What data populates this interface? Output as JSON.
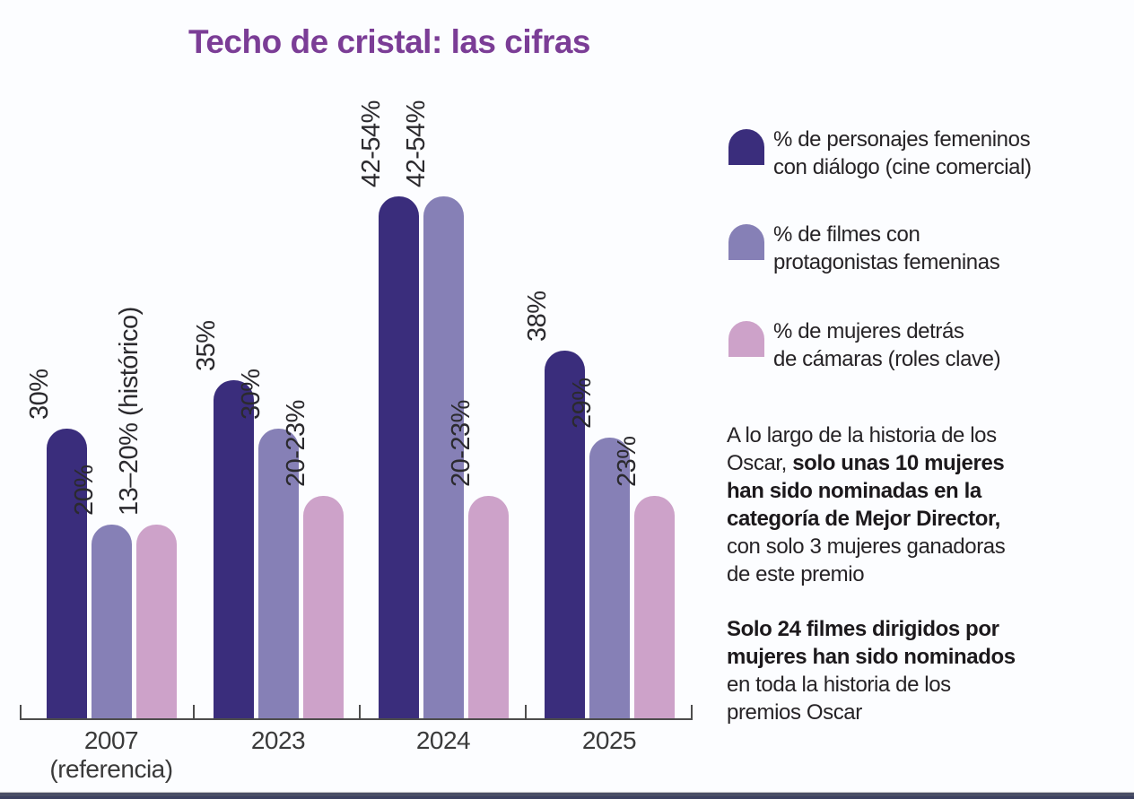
{
  "title": "Techo de cristal: las cifras",
  "chart_data": {
    "type": "bar",
    "title": "Techo de cristal: las cifras",
    "categories": [
      "2007 (referencia)",
      "2023",
      "2024",
      "2025"
    ],
    "category_lines": [
      [
        "2007",
        "(referencia)"
      ],
      [
        "2023"
      ],
      [
        "2024"
      ],
      [
        "2025"
      ]
    ],
    "ylim": [
      0,
      60
    ],
    "grid": false,
    "legend_position": "right",
    "series": [
      {
        "name": "% de personajes femeninos con diálogo (cine comercial)",
        "color": "#3a2d7c",
        "values": [
          30,
          35,
          54,
          38
        ],
        "value_labels": [
          "30%",
          "35%",
          "42-54%",
          "38%"
        ]
      },
      {
        "name": "% de filmes con protagonistas femeninas",
        "color": "#8680b6",
        "values": [
          20,
          30,
          54,
          29
        ],
        "value_labels": [
          "20%",
          "30%",
          "42-54%",
          "29%"
        ]
      },
      {
        "name": "% de mujeres detrás de cámaras (roles clave)",
        "color": "#cda2c9",
        "values": [
          20,
          23,
          23,
          23
        ],
        "value_labels": [
          "13–20% (histórico)",
          "20-23%",
          "20-23%",
          "23%"
        ]
      }
    ]
  },
  "legend": {
    "items": [
      {
        "color": "#3a2d7c",
        "lines": [
          "% de personajes femeninos",
          "con diálogo (cine comercial)"
        ]
      },
      {
        "color": "#8680b6",
        "lines": [
          "% de filmes con",
          "protagonistas femeninas"
        ]
      },
      {
        "color": "#cda2c9",
        "lines": [
          "% de mujeres detrás",
          "de cámaras (roles clave)"
        ]
      }
    ]
  },
  "notes": {
    "paragraphs": [
      {
        "lines": [
          [
            {
              "text": "A lo largo de la historia de los",
              "bold": false
            }
          ],
          [
            {
              "text": "Oscar, ",
              "bold": false
            },
            {
              "text": "solo unas 10 mujeres",
              "bold": true
            }
          ],
          [
            {
              "text": "han sido nominadas en la",
              "bold": true
            }
          ],
          [
            {
              "text": "categoría de Mejor Director,",
              "bold": true
            }
          ],
          [
            {
              "text": "con solo 3 mujeres ganadoras",
              "bold": false
            }
          ],
          [
            {
              "text": "de este premio",
              "bold": false
            }
          ]
        ]
      },
      {
        "lines": [
          [
            {
              "text": "Solo 24 filmes dirigidos por",
              "bold": true
            }
          ],
          [
            {
              "text": "mujeres han sido nominados",
              "bold": true
            }
          ],
          [
            {
              "text": "en toda la historia de los",
              "bold": false
            }
          ],
          [
            {
              "text": "premios Oscar",
              "bold": false
            }
          ]
        ]
      }
    ]
  },
  "colors": {
    "title": "#7b3d96",
    "series_dark": "#3a2d7c",
    "series_medium": "#8680b6",
    "series_light": "#cda2c9",
    "axis": "#4d4d4d",
    "text": "#262326",
    "background": "#fcfdff",
    "bottom_rule": "#4a4f66"
  }
}
